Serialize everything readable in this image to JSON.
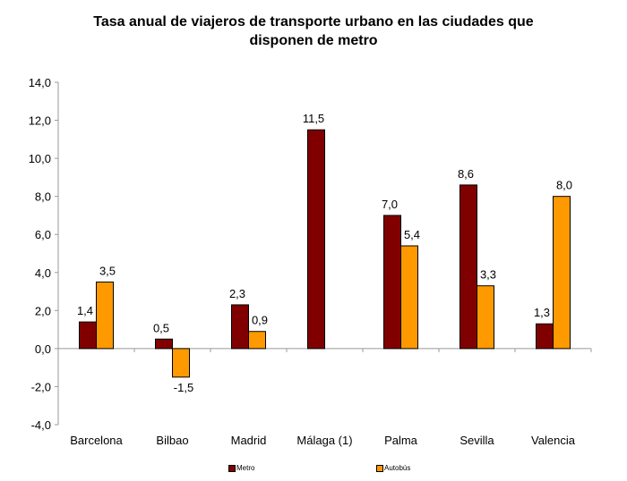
{
  "chart_data": {
    "type": "bar",
    "title": "Tasa anual de viajeros de transporte urbano en las ciudades que disponen de metro",
    "title_lines": [
      "Tasa anual de viajeros de transporte urbano en las ciudades que",
      "disponen de metro"
    ],
    "categories": [
      "Barcelona",
      "Bilbao",
      "Madrid",
      "Málaga (1)",
      "Palma",
      "Sevilla",
      "Valencia"
    ],
    "series": [
      {
        "name": "Metro",
        "color": "#800000",
        "values": [
          1.4,
          0.5,
          2.3,
          11.5,
          7.0,
          8.6,
          1.3
        ],
        "labels": [
          "1,4",
          "0,5",
          "2,3",
          "11,5",
          "7,0",
          "8,6",
          "1,3"
        ]
      },
      {
        "name": "Autobús",
        "color": "#FF9900",
        "values": [
          3.5,
          -1.5,
          0.9,
          null,
          5.4,
          3.3,
          8.0
        ],
        "labels": [
          "3,5",
          "-1,5",
          "0,9",
          null,
          "5,4",
          "3,3",
          "8,0"
        ]
      }
    ],
    "ylim": [
      -4,
      14
    ],
    "yticks": [
      14,
      12,
      10,
      8,
      6,
      4,
      2,
      0,
      -2,
      -4
    ],
    "ytick_labels": [
      "14,0",
      "12,0",
      "10,0",
      "8,0",
      "6,0",
      "4,0",
      "2,0",
      "0,0",
      "-2,0",
      "-4,0"
    ],
    "xlabel": "",
    "ylabel": "",
    "grid": false,
    "legend": "bottom"
  }
}
